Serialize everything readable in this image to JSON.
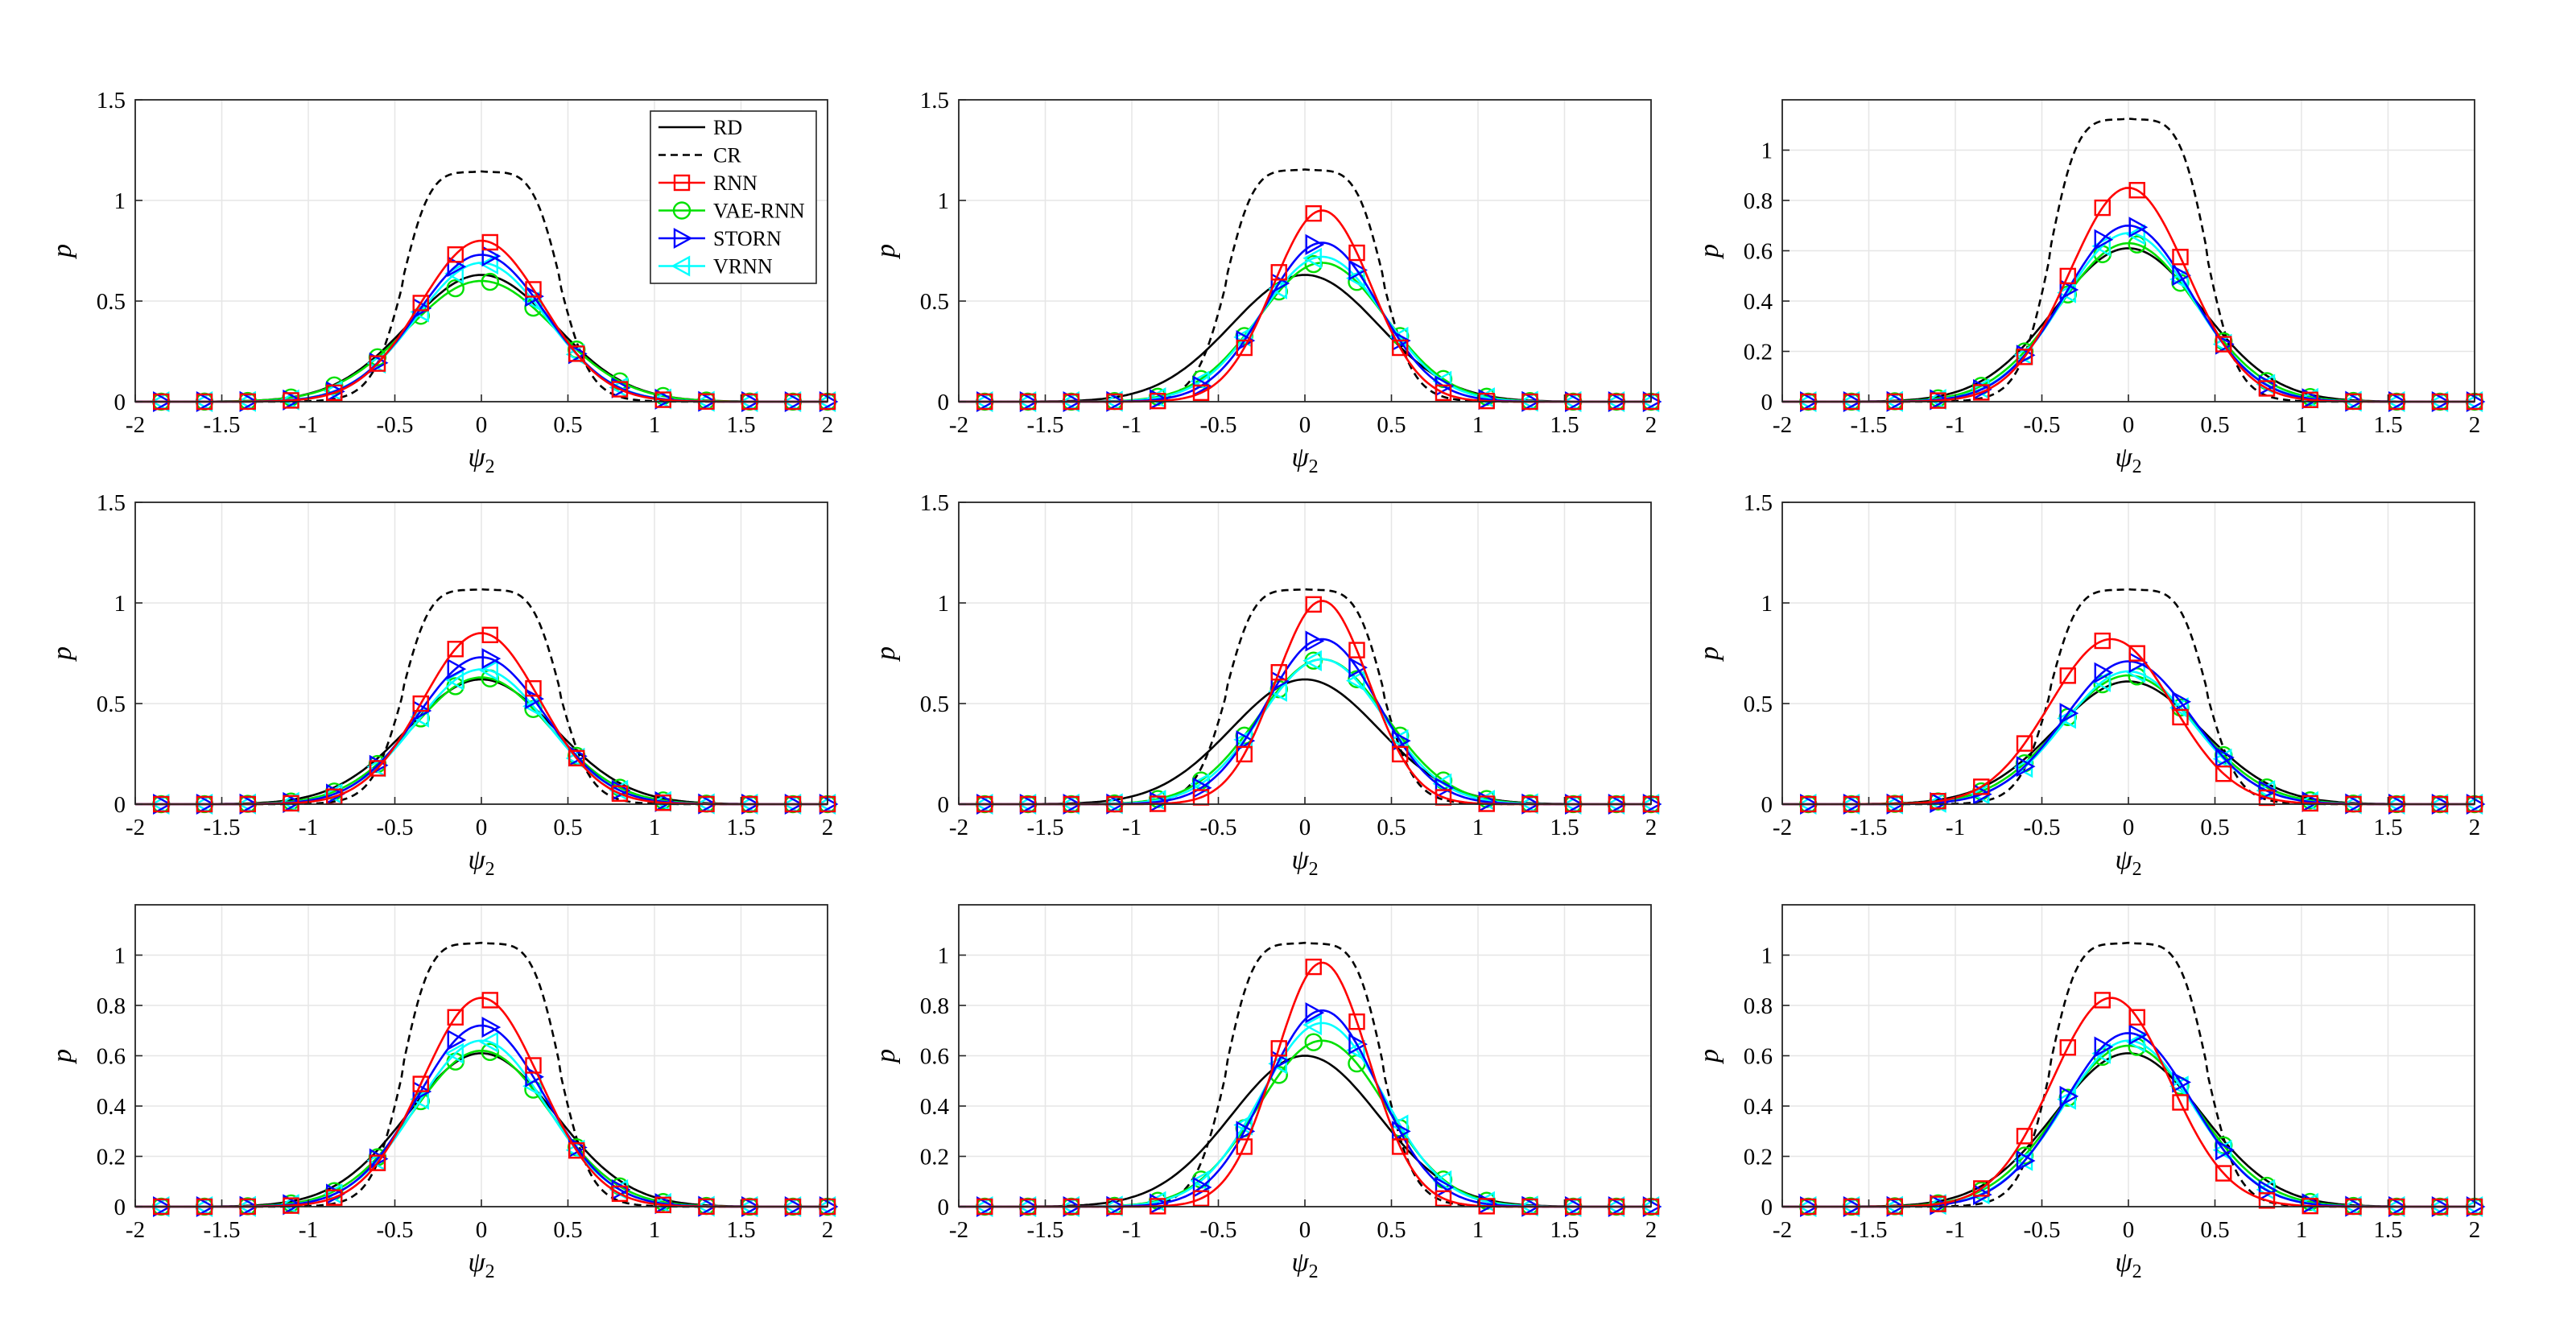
{
  "figure": {
    "legend": [
      {
        "label": "RD",
        "color": "#000000",
        "dash": "solid",
        "marker": "none"
      },
      {
        "label": "CR",
        "color": "#000000",
        "dash": "dashed",
        "marker": "none"
      },
      {
        "label": "RNN",
        "color": "#ff0000",
        "dash": "solid",
        "marker": "square"
      },
      {
        "label": "VAE-RNN",
        "color": "#00e000",
        "dash": "solid",
        "marker": "circle"
      },
      {
        "label": "STORN",
        "color": "#0000ff",
        "dash": "solid",
        "marker": "triangle-right"
      },
      {
        "label": "VRNN",
        "color": "#00ffff",
        "dash": "solid",
        "marker": "triangle-left"
      }
    ],
    "xlabel": "ψ",
    "xlabel_sub": "2",
    "ylabel": "p"
  },
  "chart_data": [
    {
      "type": "line",
      "xlabel": "ψ2",
      "ylabel": "p",
      "xlim": [
        -2,
        2
      ],
      "ylim": [
        0,
        1.5
      ],
      "x_ticks": [
        -2,
        -1.5,
        -1,
        -0.5,
        0,
        0.5,
        1,
        1.5,
        2
      ],
      "y_ticks": [
        0,
        0.5,
        1,
        1.5
      ],
      "grid": true,
      "legend": "top-right",
      "series": [
        {
          "name": "RD",
          "center": 0.0,
          "width": 0.6,
          "peak": 0.63,
          "split": 0.0,
          "plateau": 0.0
        },
        {
          "name": "CR",
          "center": 0.0,
          "width": 0.35,
          "peak": 1.2,
          "split": 0.0,
          "plateau": 0.45
        },
        {
          "name": "RNN",
          "center": 0.0,
          "width": 0.5,
          "peak": 0.8,
          "split": 0.0,
          "plateau": 0.0
        },
        {
          "name": "VAE-RNN",
          "center": 0.0,
          "width": 0.6,
          "peak": 0.6,
          "split": 0.0,
          "plateau": 0.0
        },
        {
          "name": "STORN",
          "center": 0.0,
          "width": 0.52,
          "peak": 0.73,
          "split": 0.0,
          "plateau": 0.0
        },
        {
          "name": "VRNN",
          "center": 0.0,
          "width": 0.53,
          "peak": 0.69,
          "split": 0.0,
          "plateau": 0.0
        }
      ]
    },
    {
      "type": "line",
      "xlabel": "ψ2",
      "ylabel": "p",
      "xlim": [
        -2,
        2
      ],
      "ylim": [
        0,
        1.5
      ],
      "x_ticks": [
        -2,
        -1.5,
        -1,
        -0.5,
        0,
        0.5,
        1,
        1.5,
        2
      ],
      "y_ticks": [
        0,
        0.5,
        1,
        1.5
      ],
      "grid": true,
      "series": [
        {
          "name": "RD",
          "center": 0.0,
          "width": 0.6,
          "peak": 0.63,
          "split": 0.0,
          "plateau": 0.0
        },
        {
          "name": "CR",
          "center": 0.0,
          "width": 0.35,
          "peak": 1.21,
          "split": 0.0,
          "plateau": 0.45
        },
        {
          "name": "RNN",
          "center": 0.1,
          "width": 0.4,
          "peak": 0.95,
          "split": 0.0,
          "plateau": 0.0
        },
        {
          "name": "VAE-RNN",
          "center": 0.1,
          "width": 0.52,
          "peak": 0.69,
          "split": 0.0,
          "plateau": 0.0
        },
        {
          "name": "STORN",
          "center": 0.1,
          "width": 0.46,
          "peak": 0.79,
          "split": 0.0,
          "plateau": 0.0
        },
        {
          "name": "VRNN",
          "center": 0.1,
          "width": 0.5,
          "peak": 0.72,
          "split": 0.0,
          "plateau": 0.0
        }
      ]
    },
    {
      "type": "line",
      "xlabel": "ψ2",
      "ylabel": "p",
      "xlim": [
        -2,
        2
      ],
      "ylim": [
        0,
        1.2
      ],
      "x_ticks": [
        -2,
        -1.5,
        -1,
        -0.5,
        0,
        0.5,
        1,
        1.5,
        2
      ],
      "y_ticks": [
        0,
        0.2,
        0.4,
        0.6,
        0.8,
        1
      ],
      "grid": true,
      "series": [
        {
          "name": "RD",
          "center": 0.0,
          "width": 0.6,
          "peak": 0.61,
          "split": 0.0,
          "plateau": 0.0
        },
        {
          "name": "CR",
          "center": 0.0,
          "width": 0.35,
          "peak": 1.18,
          "split": 0.0,
          "plateau": 0.45
        },
        {
          "name": "RNN",
          "center": 0.0,
          "width": 0.48,
          "peak": 0.85,
          "split": 0.0,
          "plateau": 0.0
        },
        {
          "name": "VAE-RNN",
          "center": 0.0,
          "width": 0.56,
          "peak": 0.63,
          "split": 0.0,
          "plateau": 0.0
        },
        {
          "name": "STORN",
          "center": 0.0,
          "width": 0.52,
          "peak": 0.7,
          "split": 0.0,
          "plateau": 0.0
        },
        {
          "name": "VRNN",
          "center": 0.0,
          "width": 0.53,
          "peak": 0.67,
          "split": 0.0,
          "plateau": 0.0
        }
      ]
    },
    {
      "type": "line",
      "xlabel": "ψ2",
      "ylabel": "p",
      "xlim": [
        -2,
        2
      ],
      "ylim": [
        0,
        1.5
      ],
      "x_ticks": [
        -2,
        -1.5,
        -1,
        -0.5,
        0,
        0.5,
        1,
        1.5,
        2
      ],
      "y_ticks": [
        0,
        0.5,
        1,
        1.5
      ],
      "grid": true,
      "series": [
        {
          "name": "RD",
          "center": 0.0,
          "width": 0.6,
          "peak": 0.62,
          "split": 0.0,
          "plateau": 0.0
        },
        {
          "name": "CR",
          "center": 0.0,
          "width": 0.35,
          "peak": 1.12,
          "split": 0.0,
          "plateau": 0.45
        },
        {
          "name": "RNN",
          "center": 0.0,
          "width": 0.48,
          "peak": 0.85,
          "split": 0.0,
          "plateau": 0.0
        },
        {
          "name": "VAE-RNN",
          "center": 0.0,
          "width": 0.56,
          "peak": 0.63,
          "split": 0.0,
          "plateau": 0.0
        },
        {
          "name": "STORN",
          "center": 0.0,
          "width": 0.52,
          "peak": 0.73,
          "split": 0.0,
          "plateau": 0.0
        },
        {
          "name": "VRNN",
          "center": 0.0,
          "width": 0.53,
          "peak": 0.67,
          "split": 0.0,
          "plateau": 0.0
        }
      ]
    },
    {
      "type": "line",
      "xlabel": "ψ2",
      "ylabel": "p",
      "xlim": [
        -2,
        2
      ],
      "ylim": [
        0,
        1.5
      ],
      "x_ticks": [
        -2,
        -1.5,
        -1,
        -0.5,
        0,
        0.5,
        1,
        1.5,
        2
      ],
      "y_ticks": [
        0,
        0.5,
        1,
        1.5
      ],
      "grid": true,
      "series": [
        {
          "name": "RD",
          "center": 0.0,
          "width": 0.6,
          "peak": 0.62,
          "split": 0.0,
          "plateau": 0.0
        },
        {
          "name": "CR",
          "center": 0.0,
          "width": 0.35,
          "peak": 1.12,
          "split": 0.0,
          "plateau": 0.45
        },
        {
          "name": "RNN",
          "center": 0.1,
          "width": 0.38,
          "peak": 1.01,
          "split": 0.0,
          "plateau": 0.0
        },
        {
          "name": "VAE-RNN",
          "center": 0.1,
          "width": 0.52,
          "peak": 0.72,
          "split": 0.0,
          "plateau": 0.0
        },
        {
          "name": "STORN",
          "center": 0.1,
          "width": 0.46,
          "peak": 0.82,
          "split": 0.0,
          "plateau": 0.0
        },
        {
          "name": "VRNN",
          "center": 0.1,
          "width": 0.5,
          "peak": 0.72,
          "split": 0.0,
          "plateau": 0.0
        }
      ]
    },
    {
      "type": "line",
      "xlabel": "ψ2",
      "ylabel": "p",
      "xlim": [
        -2,
        2
      ],
      "ylim": [
        0,
        1.5
      ],
      "x_ticks": [
        -2,
        -1.5,
        -1,
        -0.5,
        0,
        0.5,
        1,
        1.5,
        2
      ],
      "y_ticks": [
        0,
        0.5,
        1,
        1.5
      ],
      "grid": true,
      "series": [
        {
          "name": "RD",
          "center": 0.0,
          "width": 0.6,
          "peak": 0.61,
          "split": 0.0,
          "plateau": 0.0
        },
        {
          "name": "CR",
          "center": 0.0,
          "width": 0.35,
          "peak": 1.12,
          "split": 0.0,
          "plateau": 0.45
        },
        {
          "name": "RNN",
          "center": -0.1,
          "width": 0.5,
          "peak": 0.82,
          "split": 0.0,
          "plateau": 0.0
        },
        {
          "name": "VAE-RNN",
          "center": 0.0,
          "width": 0.56,
          "peak": 0.64,
          "split": 0.0,
          "plateau": 0.0
        },
        {
          "name": "STORN",
          "center": 0.0,
          "width": 0.52,
          "peak": 0.71,
          "split": 0.0,
          "plateau": 0.0
        },
        {
          "name": "VRNN",
          "center": 0.0,
          "width": 0.53,
          "peak": 0.66,
          "split": 0.0,
          "plateau": 0.0
        }
      ]
    },
    {
      "type": "line",
      "xlabel": "ψ2",
      "ylabel": "p",
      "xlim": [
        -2,
        2
      ],
      "ylim": [
        0,
        1.2
      ],
      "x_ticks": [
        -2,
        -1.5,
        -1,
        -0.5,
        0,
        0.5,
        1,
        1.5,
        2
      ],
      "y_ticks": [
        0,
        0.2,
        0.4,
        0.6,
        0.8,
        1
      ],
      "grid": true,
      "series": [
        {
          "name": "RD",
          "center": 0.0,
          "width": 0.6,
          "peak": 0.61,
          "split": 0.0,
          "plateau": 0.0
        },
        {
          "name": "CR",
          "center": 0.0,
          "width": 0.35,
          "peak": 1.1,
          "split": 0.0,
          "plateau": 0.45
        },
        {
          "name": "RNN",
          "center": 0.0,
          "width": 0.48,
          "peak": 0.83,
          "split": 0.0,
          "plateau": 0.0
        },
        {
          "name": "VAE-RNN",
          "center": 0.0,
          "width": 0.56,
          "peak": 0.62,
          "split": 0.0,
          "plateau": 0.0
        },
        {
          "name": "STORN",
          "center": 0.0,
          "width": 0.52,
          "peak": 0.72,
          "split": 0.0,
          "plateau": 0.0
        },
        {
          "name": "VRNN",
          "center": 0.0,
          "width": 0.53,
          "peak": 0.66,
          "split": 0.0,
          "plateau": 0.0
        }
      ]
    },
    {
      "type": "line",
      "xlabel": "ψ2",
      "ylabel": "p",
      "xlim": [
        -2,
        2
      ],
      "ylim": [
        0,
        1.2
      ],
      "x_ticks": [
        -2,
        -1.5,
        -1,
        -0.5,
        0,
        0.5,
        1,
        1.5,
        2
      ],
      "y_ticks": [
        0,
        0.2,
        0.4,
        0.6,
        0.8,
        1
      ],
      "grid": true,
      "series": [
        {
          "name": "RD",
          "center": 0.0,
          "width": 0.6,
          "peak": 0.6,
          "split": 0.0,
          "plateau": 0.0
        },
        {
          "name": "CR",
          "center": 0.0,
          "width": 0.35,
          "peak": 1.1,
          "split": 0.0,
          "plateau": 0.45
        },
        {
          "name": "RNN",
          "center": 0.1,
          "width": 0.38,
          "peak": 0.97,
          "split": 0.0,
          "plateau": 0.0
        },
        {
          "name": "VAE-RNN",
          "center": 0.1,
          "width": 0.52,
          "peak": 0.66,
          "split": 0.0,
          "plateau": 0.0
        },
        {
          "name": "STORN",
          "center": 0.1,
          "width": 0.46,
          "peak": 0.78,
          "split": 0.0,
          "plateau": 0.0
        },
        {
          "name": "VRNN",
          "center": 0.1,
          "width": 0.5,
          "peak": 0.73,
          "split": 0.0,
          "plateau": 0.0
        }
      ]
    },
    {
      "type": "line",
      "xlabel": "ψ2",
      "ylabel": "p",
      "xlim": [
        -2,
        2
      ],
      "ylim": [
        0,
        1.2
      ],
      "x_ticks": [
        -2,
        -1.5,
        -1,
        -0.5,
        0,
        0.5,
        1,
        1.5,
        2
      ],
      "y_ticks": [
        0,
        0.2,
        0.4,
        0.6,
        0.8,
        1
      ],
      "grid": true,
      "series": [
        {
          "name": "RD",
          "center": 0.0,
          "width": 0.6,
          "peak": 0.61,
          "split": 0.0,
          "plateau": 0.0
        },
        {
          "name": "CR",
          "center": 0.0,
          "width": 0.35,
          "peak": 1.1,
          "split": 0.0,
          "plateau": 0.45
        },
        {
          "name": "RNN",
          "center": -0.1,
          "width": 0.48,
          "peak": 0.83,
          "split": 0.0,
          "plateau": 0.0
        },
        {
          "name": "VAE-RNN",
          "center": 0.0,
          "width": 0.56,
          "peak": 0.64,
          "split": 0.0,
          "plateau": 0.0
        },
        {
          "name": "STORN",
          "center": 0.0,
          "width": 0.52,
          "peak": 0.69,
          "split": 0.0,
          "plateau": 0.0
        },
        {
          "name": "VRNN",
          "center": 0.0,
          "width": 0.53,
          "peak": 0.66,
          "split": 0.0,
          "plateau": 0.0
        }
      ]
    }
  ]
}
